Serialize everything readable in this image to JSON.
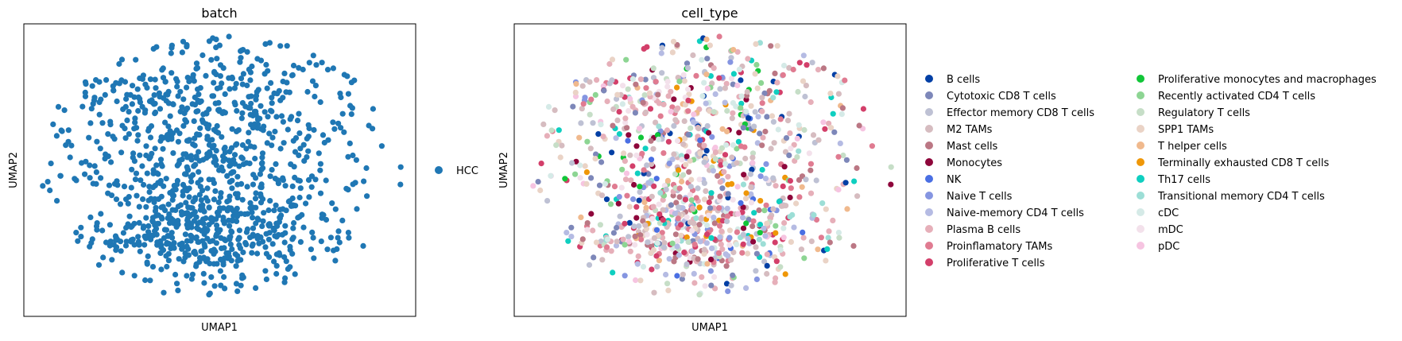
{
  "chart_data": [
    {
      "type": "scatter",
      "title": "batch",
      "xlabel": "UMAP1",
      "ylabel": "UMAP2",
      "x_ticks": "none",
      "y_ticks": "none",
      "grid": false,
      "legend_placement": "right",
      "series": [
        {
          "name": "HCC",
          "color": "#1f77b4",
          "approx_points": 1100
        }
      ]
    },
    {
      "type": "scatter",
      "title": "cell_type",
      "xlabel": "UMAP1",
      "ylabel": "UMAP2",
      "x_ticks": "none",
      "y_ticks": "none",
      "grid": false,
      "legend_placement": "right",
      "series": [
        {
          "name": "B cells",
          "color": "#023fa5"
        },
        {
          "name": "Cytotoxic CD8 T cells",
          "color": "#7d87b9"
        },
        {
          "name": "Effector memory CD8 T cells",
          "color": "#bec1d4"
        },
        {
          "name": "M2 TAMs",
          "color": "#d6bcc0"
        },
        {
          "name": "Mast cells",
          "color": "#bb7784"
        },
        {
          "name": "Monocytes",
          "color": "#8e063b"
        },
        {
          "name": "NK",
          "color": "#4a6fe3"
        },
        {
          "name": "Naive T cells",
          "color": "#8595e1"
        },
        {
          "name": "Naive-memory CD4 T cells",
          "color": "#b5bbe3"
        },
        {
          "name": "Plasma B cells",
          "color": "#e6afb9"
        },
        {
          "name": "Proinflamatory TAMs",
          "color": "#e07b91"
        },
        {
          "name": "Proliferative T cells",
          "color": "#d33f6a"
        },
        {
          "name": "Proliferative monocytes and macrophages",
          "color": "#11c638"
        },
        {
          "name": "Recently activated CD4 T cells",
          "color": "#8dd593"
        },
        {
          "name": "Regulatory T cells",
          "color": "#c6dec7"
        },
        {
          "name": "SPP1 TAMs",
          "color": "#ead3c6"
        },
        {
          "name": "T helper cells",
          "color": "#f0b98d"
        },
        {
          "name": "Terminally exhausted CD8 T cells",
          "color": "#ef9708"
        },
        {
          "name": "Th17 cells",
          "color": "#0fcfc0"
        },
        {
          "name": "Transitional memory CD4 T cells",
          "color": "#9cded6"
        },
        {
          "name": "cDC",
          "color": "#d5eae7"
        },
        {
          "name": "mDC",
          "color": "#f3e1eb"
        },
        {
          "name": "pDC",
          "color": "#f6c4e1"
        }
      ]
    }
  ]
}
